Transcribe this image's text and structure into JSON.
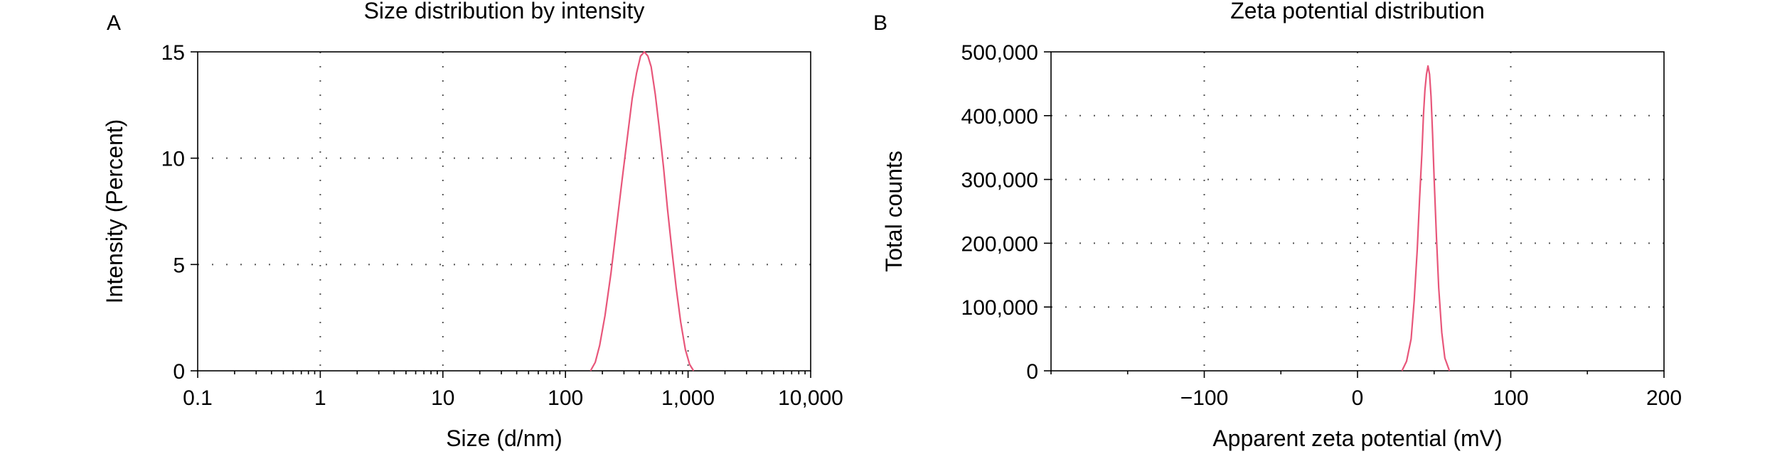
{
  "chart_data": [
    {
      "panel_label": "A",
      "type": "line",
      "title": "Size distribution by intensity",
      "xlabel": "Size (d/nm)",
      "ylabel": "Intensity (Percent)",
      "x_scale": "log",
      "xlim": [
        0.1,
        10000
      ],
      "ylim": [
        0,
        15
      ],
      "x_ticks": [
        0.1,
        1,
        10,
        100,
        1000,
        10000
      ],
      "x_tick_labels": [
        "0.1",
        "1",
        "10",
        "100",
        "1,000",
        "10,000"
      ],
      "y_ticks": [
        0,
        5,
        10,
        15
      ],
      "y_tick_labels": [
        "0",
        "5",
        "10",
        "15"
      ],
      "grid": true,
      "series": [
        {
          "color": "#e8567a",
          "x": [
            160,
            175,
            190,
            210,
            235,
            260,
            290,
            320,
            350,
            380,
            410,
            440,
            470,
            500,
            540,
            580,
            630,
            680,
            740,
            800,
            870,
            950,
            1030,
            1110
          ],
          "y": [
            0,
            0.4,
            1.2,
            2.6,
            4.6,
            6.7,
            9.0,
            11.0,
            12.8,
            14.0,
            14.8,
            15.0,
            14.8,
            14.3,
            13.0,
            11.5,
            9.6,
            7.6,
            5.6,
            3.9,
            2.3,
            1.0,
            0.3,
            0
          ]
        }
      ]
    },
    {
      "panel_label": "B",
      "type": "line",
      "title": "Zeta potential distribution",
      "xlabel": "Apparent zeta potential (mV)",
      "ylabel": "Total counts",
      "x_scale": "linear",
      "xlim": [
        -200,
        200
      ],
      "ylim": [
        0,
        500000
      ],
      "x_ticks": [
        -100,
        0,
        100,
        200
      ],
      "x_tick_labels": [
        "−100",
        "0",
        "100",
        "200"
      ],
      "y_ticks": [
        0,
        100000,
        200000,
        300000,
        400000,
        500000
      ],
      "y_tick_labels": [
        "0",
        "100,000",
        "200,000",
        "300,000",
        "400,000",
        "500,000"
      ],
      "grid": true,
      "series": [
        {
          "color": "#e8567a",
          "x": [
            29,
            32,
            35,
            37,
            39,
            40.5,
            42,
            43,
            44,
            45,
            46,
            47,
            48,
            49,
            50,
            51.5,
            53,
            55,
            57,
            60
          ],
          "y": [
            0,
            15000,
            50000,
            110000,
            190000,
            270000,
            340000,
            400000,
            440000,
            465000,
            478000,
            465000,
            430000,
            370000,
            300000,
            210000,
            130000,
            60000,
            20000,
            0
          ]
        }
      ]
    }
  ]
}
